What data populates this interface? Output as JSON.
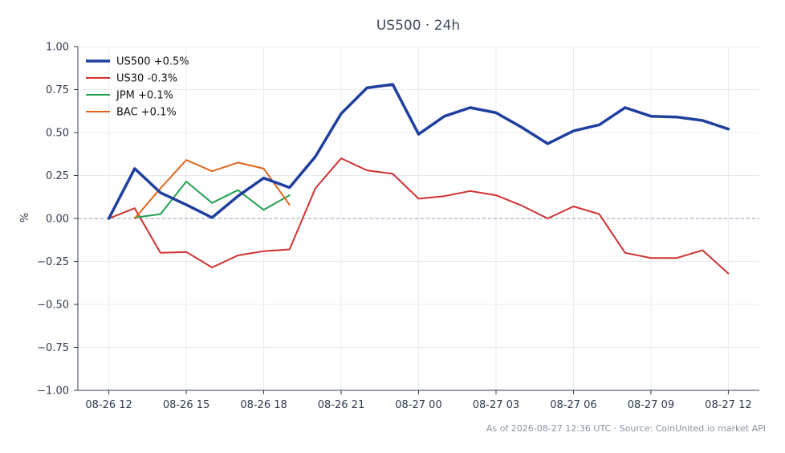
{
  "chart_data": {
    "type": "line",
    "title": "US500 · 24h",
    "xlabel": "",
    "ylabel": "%",
    "ylim": [
      -1.0,
      1.0
    ],
    "yticks": [
      "1.00",
      "0.75",
      "0.50",
      "0.25",
      "0.00",
      "−0.25",
      "−0.50",
      "−0.75",
      "−1.00"
    ],
    "ytick_values": [
      1.0,
      0.75,
      0.5,
      0.25,
      0.0,
      -0.25,
      -0.5,
      -0.75,
      -1.0
    ],
    "xticks": [
      "08-26 12",
      "08-26 15",
      "08-26 18",
      "08-26 21",
      "08-27 00",
      "08-27 03",
      "08-27 06",
      "08-27 09",
      "08-27 12"
    ],
    "xtick_hours": [
      0,
      3,
      6,
      9,
      12,
      15,
      18,
      21,
      24
    ],
    "grid": true,
    "zero_line": true,
    "legend_position": "top-left",
    "series": [
      {
        "name": "US500 +0.5%",
        "color": "#1f3f9f",
        "width": 3.5,
        "x": [
          0,
          1,
          2,
          3,
          4,
          5,
          6,
          7,
          8,
          9,
          10,
          11,
          12,
          13,
          14,
          15,
          16,
          17,
          18,
          19,
          20,
          21,
          22,
          23,
          24
        ],
        "values": [
          0.0,
          0.29,
          0.15,
          0.08,
          0.005,
          0.13,
          0.235,
          0.18,
          0.36,
          0.61,
          0.76,
          0.78,
          0.49,
          0.595,
          0.645,
          0.615,
          0.53,
          0.435,
          0.51,
          0.545,
          0.645,
          0.595,
          0.59,
          0.57,
          0.52
        ]
      },
      {
        "name": "US30 -0.3%",
        "color": "#d03030",
        "width": 2,
        "x": [
          0,
          1,
          2,
          3,
          4,
          5,
          6,
          7,
          8,
          9,
          10,
          11,
          12,
          13,
          14,
          15,
          16,
          17,
          18,
          19,
          20,
          21,
          22,
          23,
          24
        ],
        "values": [
          0.0,
          0.06,
          -0.2,
          -0.195,
          -0.285,
          -0.215,
          -0.19,
          -0.18,
          0.175,
          0.35,
          0.28,
          0.26,
          0.115,
          0.13,
          0.16,
          0.135,
          0.075,
          0.0,
          0.07,
          0.025,
          -0.2,
          -0.23,
          -0.23,
          -0.185,
          -0.32
        ]
      },
      {
        "name": "JPM +0.1%",
        "color": "#22a050",
        "width": 2,
        "x": [
          1,
          2,
          3,
          4,
          5,
          6,
          7
        ],
        "values": [
          0.005,
          0.025,
          0.215,
          0.09,
          0.165,
          0.05,
          0.135
        ]
      },
      {
        "name": "BAC +0.1%",
        "color": "#e0651a",
        "width": 2,
        "x": [
          1,
          2,
          3,
          4,
          5,
          6,
          7
        ],
        "values": [
          0.0,
          0.175,
          0.34,
          0.275,
          0.325,
          0.29,
          0.08
        ]
      }
    ],
    "annotations": [
      "As of 2026-08-27 12:36 UTC · Source: CoinUnited.io market API"
    ]
  }
}
